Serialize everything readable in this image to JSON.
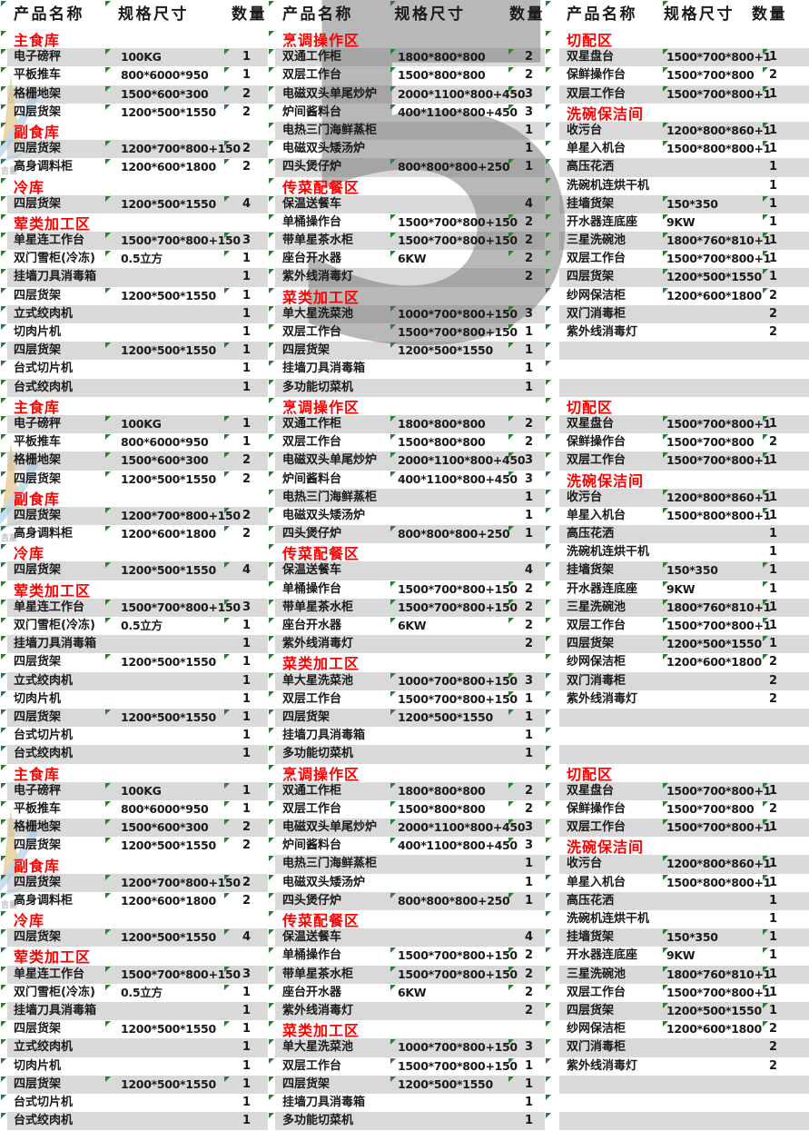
{
  "header": {
    "columns": [
      "产品名称",
      "规格尺寸",
      "数量"
    ]
  },
  "watermark": {
    "digit": "5",
    "logo_text": "吉星"
  },
  "colors": {
    "band": "#d9d9d9",
    "category": "#fe0000",
    "flag": "#2e7d32",
    "watermark_gray": "#737373",
    "logo_yellow": "#dfc07c",
    "logo_blue": "#a5c8e1",
    "logo_text_gray": "#8f8f8f"
  },
  "blocks_repeat": 3,
  "rows_per_block": 20,
  "groups": [
    {
      "sections": [
        {
          "category": "主食库",
          "items": [
            [
              "电子磅秤",
              "100KG",
              "1"
            ],
            [
              "平板推车",
              "800*6000*950",
              "1"
            ],
            [
              "格栅地架",
              "1500*600*300",
              "2"
            ],
            [
              "四层货架",
              "1200*500*1550",
              "2"
            ]
          ]
        },
        {
          "category": "副食库",
          "items": [
            [
              "四层货架",
              "1200*700*800+150",
              "2"
            ],
            [
              "高身调料柜",
              "1200*600*1800",
              "2"
            ]
          ]
        },
        {
          "category": "冷库",
          "items": [
            [
              "四层货架",
              "1200*500*1550",
              "4"
            ]
          ]
        },
        {
          "category": "荤类加工区",
          "items": [
            [
              "单星连工作台",
              "1500*700*800+150",
              "3"
            ],
            [
              "双门雪柜(冷冻)",
              "0.5立方",
              "1"
            ],
            [
              "挂墙刀具消毒箱",
              "",
              "1"
            ],
            [
              "四层货架",
              "1200*500*1550",
              "1"
            ],
            [
              "立式绞肉机",
              "",
              "1"
            ],
            [
              "切肉片机",
              "",
              "1"
            ],
            [
              "四层货架",
              "1200*500*1550",
              "1"
            ],
            [
              "台式切片机",
              "",
              "1"
            ],
            [
              "台式绞肉机",
              "",
              "1"
            ]
          ]
        }
      ]
    },
    {
      "sections": [
        {
          "category": "烹调操作区",
          "items": [
            [
              "双通工作柜",
              "1800*800*800",
              "2"
            ],
            [
              "双层工作台",
              "1500*800*800",
              "2"
            ],
            [
              "电磁双头单尾炒炉",
              "2000*1100*800+450",
              "3"
            ],
            [
              "炉间酱料台",
              "400*1100*800+450",
              "3"
            ],
            [
              "电热三门海鲜蒸柜",
              "",
              "1"
            ],
            [
              "电磁双头矮汤炉",
              "",
              "1"
            ],
            [
              "四头煲仔炉",
              "800*800*800+250",
              "1"
            ]
          ]
        },
        {
          "category": "传菜配餐区",
          "items": [
            [
              "保温送餐车",
              "",
              "4"
            ],
            [
              "单桶操作台",
              "1500*700*800+150",
              "2"
            ],
            [
              "带单星茶水柜",
              "1500*700*800+150",
              "2"
            ],
            [
              "座台开水器",
              "6KW",
              "2"
            ],
            [
              "紫外线消毒灯",
              "",
              "2"
            ]
          ]
        },
        {
          "category": "菜类加工区",
          "items": [
            [
              "单大星洗菜池",
              "1000*700*800+150",
              "3"
            ],
            [
              "双层工作台",
              "1500*700*800+150",
              "1"
            ],
            [
              "四层货架",
              "1200*500*1550",
              "1"
            ],
            [
              "挂墙刀具消毒箱",
              "",
              "1"
            ],
            [
              "多功能切菜机",
              "",
              "1"
            ]
          ]
        }
      ]
    },
    {
      "sections": [
        {
          "category": "切配区",
          "items": [
            [
              "双星盘台",
              "1500*700*800+1",
              "1"
            ],
            [
              "保鲜操作台",
              "1500*700*800",
              "2"
            ],
            [
              "双层工作台",
              "1500*700*800+1",
              "1"
            ]
          ]
        },
        {
          "category": "洗碗保洁间",
          "items": [
            [
              "收污台",
              "1200*800*860+1",
              "1"
            ],
            [
              "单星入机台",
              "1500*800*800+1",
              "1"
            ],
            [
              "高压花洒",
              "",
              "1"
            ],
            [
              "洗碗机连烘干机",
              "",
              "1"
            ],
            [
              "挂墙货架",
              "150*350",
              "1"
            ],
            [
              "开水器连底座",
              "9KW",
              "1"
            ],
            [
              "三星洗碗池",
              "1800*760*810+1",
              "1"
            ],
            [
              "双层工作台",
              "1500*700*800+1",
              "1"
            ],
            [
              "四层货架",
              "1200*500*1550",
              "1"
            ],
            [
              "纱网保洁柜",
              "1200*600*1800",
              "2"
            ],
            [
              "双门消毒柜",
              "",
              "2"
            ],
            [
              "紫外线消毒灯",
              "",
              "2"
            ]
          ]
        }
      ]
    }
  ]
}
